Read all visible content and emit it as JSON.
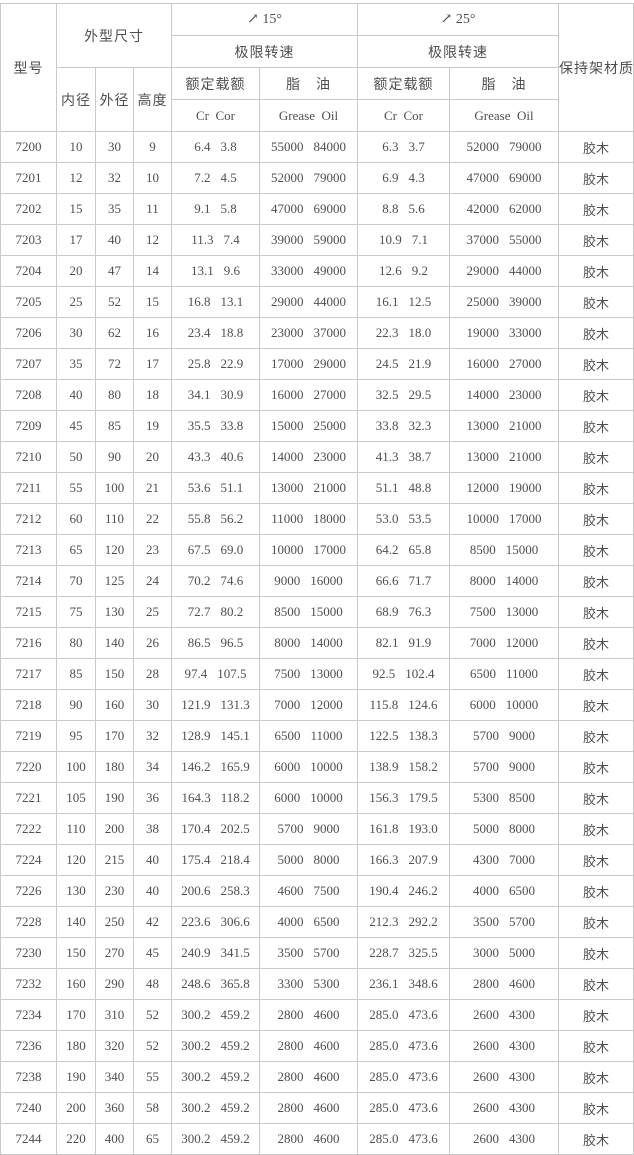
{
  "table": {
    "header": {
      "model": "型号",
      "dims_group": "外型尺寸",
      "dim_inner": "内径",
      "dim_outer": "外径",
      "dim_height": "高度",
      "angle15": "↗ 15°",
      "angle25": "↗ 25°",
      "limit_speed": "极限转速",
      "rated_load": "额定载额",
      "grease_oil_cn": "脂　油",
      "cr_cor": "Cr  Cor",
      "grease_oil_en": "Grease  Oil",
      "cage": "保持架材质"
    },
    "rows": [
      {
        "model": "7200",
        "d": "10",
        "D": "30",
        "B": "9",
        "cr15": "6.4",
        "cor15": "3.8",
        "grease15": "55000",
        "oil15": "84000",
        "cr25": "6.3",
        "cor25": "3.7",
        "grease25": "52000",
        "oil25": "79000",
        "cage": "胶木"
      },
      {
        "model": "7201",
        "d": "12",
        "D": "32",
        "B": "10",
        "cr15": "7.2",
        "cor15": "4.5",
        "grease15": "52000",
        "oil15": "79000",
        "cr25": "6.9",
        "cor25": "4.3",
        "grease25": "47000",
        "oil25": "69000",
        "cage": "胶木"
      },
      {
        "model": "7202",
        "d": "15",
        "D": "35",
        "B": "11",
        "cr15": "9.1",
        "cor15": "5.8",
        "grease15": "47000",
        "oil15": "69000",
        "cr25": "8.8",
        "cor25": "5.6",
        "grease25": "42000",
        "oil25": "62000",
        "cage": "胶木"
      },
      {
        "model": "7203",
        "d": "17",
        "D": "40",
        "B": "12",
        "cr15": "11.3",
        "cor15": "7.4",
        "grease15": "39000",
        "oil15": "59000",
        "cr25": "10.9",
        "cor25": "7.1",
        "grease25": "37000",
        "oil25": "55000",
        "cage": "胶木"
      },
      {
        "model": "7204",
        "d": "20",
        "D": "47",
        "B": "14",
        "cr15": "13.1",
        "cor15": "9.6",
        "grease15": "33000",
        "oil15": "49000",
        "cr25": "12.6",
        "cor25": "9.2",
        "grease25": "29000",
        "oil25": "44000",
        "cage": "胶木"
      },
      {
        "model": "7205",
        "d": "25",
        "D": "52",
        "B": "15",
        "cr15": "16.8",
        "cor15": "13.1",
        "grease15": "29000",
        "oil15": "44000",
        "cr25": "16.1",
        "cor25": "12.5",
        "grease25": "25000",
        "oil25": "39000",
        "cage": "胶木"
      },
      {
        "model": "7206",
        "d": "30",
        "D": "62",
        "B": "16",
        "cr15": "23.4",
        "cor15": "18.8",
        "grease15": "23000",
        "oil15": "37000",
        "cr25": "22.3",
        "cor25": "18.0",
        "grease25": "19000",
        "oil25": "33000",
        "cage": "胶木"
      },
      {
        "model": "7207",
        "d": "35",
        "D": "72",
        "B": "17",
        "cr15": "25.8",
        "cor15": "22.9",
        "grease15": "17000",
        "oil15": "29000",
        "cr25": "24.5",
        "cor25": "21.9",
        "grease25": "16000",
        "oil25": "27000",
        "cage": "胶木"
      },
      {
        "model": "7208",
        "d": "40",
        "D": "80",
        "B": "18",
        "cr15": "34.1",
        "cor15": "30.9",
        "grease15": "16000",
        "oil15": "27000",
        "cr25": "32.5",
        "cor25": "29.5",
        "grease25": "14000",
        "oil25": "23000",
        "cage": "胶木"
      },
      {
        "model": "7209",
        "d": "45",
        "D": "85",
        "B": "19",
        "cr15": "35.5",
        "cor15": "33.8",
        "grease15": "15000",
        "oil15": "25000",
        "cr25": "33.8",
        "cor25": "32.3",
        "grease25": "13000",
        "oil25": "21000",
        "cage": "胶木"
      },
      {
        "model": "7210",
        "d": "50",
        "D": "90",
        "B": "20",
        "cr15": "43.3",
        "cor15": "40.6",
        "grease15": "14000",
        "oil15": "23000",
        "cr25": "41.3",
        "cor25": "38.7",
        "grease25": "13000",
        "oil25": "21000",
        "cage": "胶木"
      },
      {
        "model": "7211",
        "d": "55",
        "D": "100",
        "B": "21",
        "cr15": "53.6",
        "cor15": "51.1",
        "grease15": "13000",
        "oil15": "21000",
        "cr25": "51.1",
        "cor25": "48.8",
        "grease25": "12000",
        "oil25": "19000",
        "cage": "胶木"
      },
      {
        "model": "7212",
        "d": "60",
        "D": "110",
        "B": "22",
        "cr15": "55.8",
        "cor15": "56.2",
        "grease15": "11000",
        "oil15": "18000",
        "cr25": "53.0",
        "cor25": "53.5",
        "grease25": "10000",
        "oil25": "17000",
        "cage": "胶木"
      },
      {
        "model": "7213",
        "d": "65",
        "D": "120",
        "B": "23",
        "cr15": "67.5",
        "cor15": "69.0",
        "grease15": "10000",
        "oil15": "17000",
        "cr25": "64.2",
        "cor25": "65.8",
        "grease25": "8500",
        "oil25": "15000",
        "cage": "胶木"
      },
      {
        "model": "7214",
        "d": "70",
        "D": "125",
        "B": "24",
        "cr15": "70.2",
        "cor15": "74.6",
        "grease15": "9000",
        "oil15": "16000",
        "cr25": "66.6",
        "cor25": "71.7",
        "grease25": "8000",
        "oil25": "14000",
        "cage": "胶木"
      },
      {
        "model": "7215",
        "d": "75",
        "D": "130",
        "B": "25",
        "cr15": "72.7",
        "cor15": "80.2",
        "grease15": "8500",
        "oil15": "15000",
        "cr25": "68.9",
        "cor25": "76.3",
        "grease25": "7500",
        "oil25": "13000",
        "cage": "胶木"
      },
      {
        "model": "7216",
        "d": "80",
        "D": "140",
        "B": "26",
        "cr15": "86.5",
        "cor15": "96.5",
        "grease15": "8000",
        "oil15": "14000",
        "cr25": "82.1",
        "cor25": "91.9",
        "grease25": "7000",
        "oil25": "12000",
        "cage": "胶木"
      },
      {
        "model": "7217",
        "d": "85",
        "D": "150",
        "B": "28",
        "cr15": "97.4",
        "cor15": "107.5",
        "grease15": "7500",
        "oil15": "13000",
        "cr25": "92.5",
        "cor25": "102.4",
        "grease25": "6500",
        "oil25": "11000",
        "cage": "胶木"
      },
      {
        "model": "7218",
        "d": "90",
        "D": "160",
        "B": "30",
        "cr15": "121.9",
        "cor15": "131.3",
        "grease15": "7000",
        "oil15": "12000",
        "cr25": "115.8",
        "cor25": "124.6",
        "grease25": "6000",
        "oil25": "10000",
        "cage": "胶木"
      },
      {
        "model": "7219",
        "d": "95",
        "D": "170",
        "B": "32",
        "cr15": "128.9",
        "cor15": "145.1",
        "grease15": "6500",
        "oil15": "11000",
        "cr25": "122.5",
        "cor25": "138.3",
        "grease25": "5700",
        "oil25": "9000",
        "cage": "胶木"
      },
      {
        "model": "7220",
        "d": "100",
        "D": "180",
        "B": "34",
        "cr15": "146.2",
        "cor15": "165.9",
        "grease15": "6000",
        "oil15": "10000",
        "cr25": "138.9",
        "cor25": "158.2",
        "grease25": "5700",
        "oil25": "9000",
        "cage": "胶木"
      },
      {
        "model": "7221",
        "d": "105",
        "D": "190",
        "B": "36",
        "cr15": "164.3",
        "cor15": "118.2",
        "grease15": "6000",
        "oil15": "10000",
        "cr25": "156.3",
        "cor25": "179.5",
        "grease25": "5300",
        "oil25": "8500",
        "cage": "胶木"
      },
      {
        "model": "7222",
        "d": "110",
        "D": "200",
        "B": "38",
        "cr15": "170.4",
        "cor15": "202.5",
        "grease15": "5700",
        "oil15": "9000",
        "cr25": "161.8",
        "cor25": "193.0",
        "grease25": "5000",
        "oil25": "8000",
        "cage": "胶木"
      },
      {
        "model": "7224",
        "d": "120",
        "D": "215",
        "B": "40",
        "cr15": "175.4",
        "cor15": "218.4",
        "grease15": "5000",
        "oil15": "8000",
        "cr25": "166.3",
        "cor25": "207.9",
        "grease25": "4300",
        "oil25": "7000",
        "cage": "胶木"
      },
      {
        "model": "7226",
        "d": "130",
        "D": "230",
        "B": "40",
        "cr15": "200.6",
        "cor15": "258.3",
        "grease15": "4600",
        "oil15": "7500",
        "cr25": "190.4",
        "cor25": "246.2",
        "grease25": "4000",
        "oil25": "6500",
        "cage": "胶木"
      },
      {
        "model": "7228",
        "d": "140",
        "D": "250",
        "B": "42",
        "cr15": "223.6",
        "cor15": "306.6",
        "grease15": "4000",
        "oil15": "6500",
        "cr25": "212.3",
        "cor25": "292.2",
        "grease25": "3500",
        "oil25": "5700",
        "cage": "胶木"
      },
      {
        "model": "7230",
        "d": "150",
        "D": "270",
        "B": "45",
        "cr15": "240.9",
        "cor15": "341.5",
        "grease15": "3500",
        "oil15": "5700",
        "cr25": "228.7",
        "cor25": "325.5",
        "grease25": "3000",
        "oil25": "5000",
        "cage": "胶木"
      },
      {
        "model": "7232",
        "d": "160",
        "D": "290",
        "B": "48",
        "cr15": "248.6",
        "cor15": "365.8",
        "grease15": "3300",
        "oil15": "5300",
        "cr25": "236.1",
        "cor25": "348.6",
        "grease25": "2800",
        "oil25": "4600",
        "cage": "胶木"
      },
      {
        "model": "7234",
        "d": "170",
        "D": "310",
        "B": "52",
        "cr15": "300.2",
        "cor15": "459.2",
        "grease15": "2800",
        "oil15": "4600",
        "cr25": "285.0",
        "cor25": "473.6",
        "grease25": "2600",
        "oil25": "4300",
        "cage": "胶木"
      },
      {
        "model": "7236",
        "d": "180",
        "D": "320",
        "B": "52",
        "cr15": "300.2",
        "cor15": "459.2",
        "grease15": "2800",
        "oil15": "4600",
        "cr25": "285.0",
        "cor25": "473.6",
        "grease25": "2600",
        "oil25": "4300",
        "cage": "胶木"
      },
      {
        "model": "7238",
        "d": "190",
        "D": "340",
        "B": "55",
        "cr15": "300.2",
        "cor15": "459.2",
        "grease15": "2800",
        "oil15": "4600",
        "cr25": "285.0",
        "cor25": "473.6",
        "grease25": "2600",
        "oil25": "4300",
        "cage": "胶木"
      },
      {
        "model": "7240",
        "d": "200",
        "D": "360",
        "B": "58",
        "cr15": "300.2",
        "cor15": "459.2",
        "grease15": "2800",
        "oil15": "4600",
        "cr25": "285.0",
        "cor25": "473.6",
        "grease25": "2600",
        "oil25": "4300",
        "cage": "胶木"
      },
      {
        "model": "7244",
        "d": "220",
        "D": "400",
        "B": "65",
        "cr15": "300.2",
        "cor15": "459.2",
        "grease15": "2800",
        "oil15": "4600",
        "cr25": "285.0",
        "cor25": "473.6",
        "grease25": "2600",
        "oil25": "4300",
        "cage": "胶木"
      }
    ]
  },
  "colors": {
    "grid": "#c9c9c9",
    "text": "#4f4f4f",
    "background": "#ffffff"
  }
}
